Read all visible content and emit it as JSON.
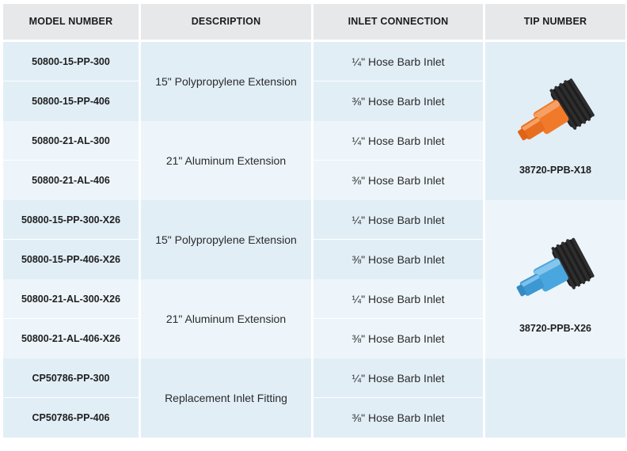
{
  "headers": {
    "model": "MODEL NUMBER",
    "description": "DESCRIPTION",
    "inlet": "INLET CONNECTION",
    "tip": "TIP NUMBER"
  },
  "rows": [
    {
      "model": "50800-15-PP-300",
      "inlet": "¼\" Hose Barb Inlet"
    },
    {
      "model": "50800-15-PP-406",
      "inlet": "⅜\" Hose Barb Inlet"
    },
    {
      "model": "50800-21-AL-300",
      "inlet": "¼\" Hose Barb Inlet"
    },
    {
      "model": "50800-21-AL-406",
      "inlet": "⅜\" Hose Barb Inlet"
    },
    {
      "model": "50800-15-PP-300-X26",
      "inlet": "¼\" Hose Barb Inlet"
    },
    {
      "model": "50800-15-PP-406-X26",
      "inlet": "⅜\" Hose Barb Inlet"
    },
    {
      "model": "50800-21-AL-300-X26",
      "inlet": "¼\" Hose Barb Inlet"
    },
    {
      "model": "50800-21-AL-406-X26",
      "inlet": "⅜\" Hose Barb Inlet"
    },
    {
      "model": "CP50786-PP-300",
      "inlet": "¼\" Hose Barb Inlet"
    },
    {
      "model": "CP50786-PP-406",
      "inlet": "⅜\" Hose Barb Inlet"
    }
  ],
  "descriptions": [
    "15\" Polypropylene Extension",
    "21\" Aluminum Extension",
    "15\" Polypropylene Extension",
    "21\" Aluminum Extension",
    "Replacement Inlet Fitting"
  ],
  "tips": [
    {
      "number": "38720-PPB-X18",
      "icon": "orange-spray-tip-icon",
      "color": "#f07a2a"
    },
    {
      "number": "38720-PPB-X26",
      "icon": "blue-spray-tip-icon",
      "color": "#4aa6de"
    }
  ]
}
